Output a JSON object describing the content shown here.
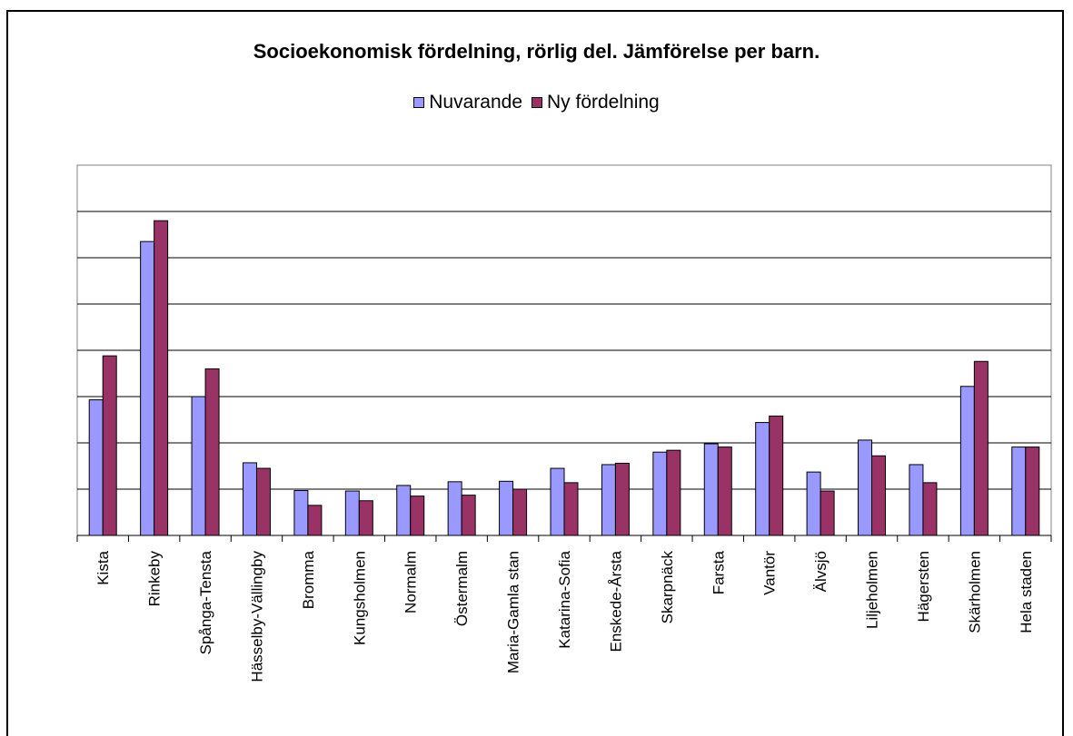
{
  "chart_data": {
    "type": "bar",
    "title": "Socioekonomisk fördelning, rörlig del. Jämförelse per barn.",
    "legend_position": "top",
    "grid": true,
    "colors": {
      "Nuvarande": "#9999ff",
      "Ny fördelning": "#993366"
    },
    "categories": [
      "Kista",
      "Rinkeby",
      "Spånga-Tensta",
      "Hässelby-Vällingby",
      "Bromma",
      "Kungsholmen",
      "Normalm",
      "Östermalm",
      "Maria-Gamla stan",
      "Katarina-Sofia",
      "Enskede-Årsta",
      "Skarpnäck",
      "Farsta",
      "Vantör",
      "Älvsjö",
      "Liljeholmen",
      "Hägersten",
      "Skärholmen",
      "Hela staden"
    ],
    "ylim": [
      0,
      8
    ],
    "series": [
      {
        "name": "Nuvarande",
        "values": [
          2.93,
          6.35,
          3.0,
          1.57,
          0.97,
          0.96,
          1.08,
          1.16,
          1.17,
          1.45,
          1.53,
          1.8,
          1.98,
          2.44,
          1.37,
          2.06,
          1.53,
          3.22,
          1.91
        ]
      },
      {
        "name": "Ny fördelning",
        "values": [
          3.88,
          6.8,
          3.6,
          1.45,
          0.65,
          0.75,
          0.85,
          0.87,
          1.0,
          1.14,
          1.56,
          1.84,
          1.91,
          2.58,
          0.96,
          1.72,
          1.14,
          3.76,
          1.91
        ]
      }
    ]
  }
}
